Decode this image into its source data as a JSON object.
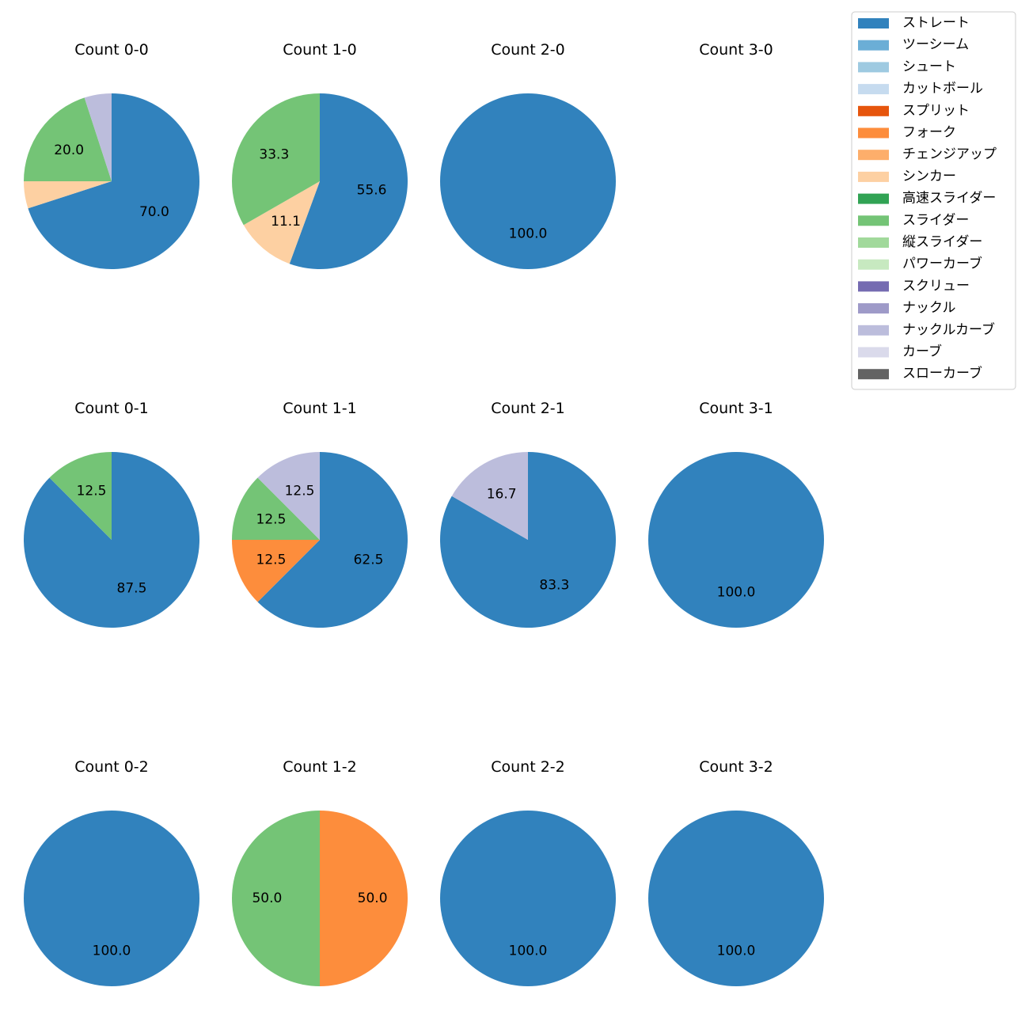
{
  "chart_data": {
    "type": "pie",
    "start_angle_deg": 90,
    "direction": "clockwise",
    "value_format": "percent, one decimal",
    "categories": [
      "ストレート",
      "ツーシーム",
      "シュート",
      "カットボール",
      "スプリット",
      "フォーク",
      "チェンジアップ",
      "シンカー",
      "高速スライダー",
      "スライダー",
      "縦スライダー",
      "パワーカーブ",
      "スクリュー",
      "ナックル",
      "ナックルカーブ",
      "カーブ",
      "スローカーブ"
    ],
    "colors": [
      "#3182bd",
      "#6baed6",
      "#9ecae1",
      "#c6dbef",
      "#e6550d",
      "#fd8d3c",
      "#fdae6b",
      "#fdd0a2",
      "#31a354",
      "#74c476",
      "#a1d99b",
      "#c7e9c0",
      "#756bb1",
      "#9e9ac8",
      "#bcbddc",
      "#dadaeb",
      "#636363"
    ],
    "legend": {
      "placement": "top-right",
      "labels": [
        "ストレート",
        "ツーシーム",
        "シュート",
        "カットボール",
        "スプリット",
        "フォーク",
        "チェンジアップ",
        "シンカー",
        "高速スライダー",
        "スライダー",
        "縦スライダー",
        "パワーカーブ",
        "スクリュー",
        "ナックル",
        "ナックルカーブ",
        "カーブ",
        "スローカーブ"
      ]
    },
    "panels": [
      {
        "title": "Count 0-0",
        "slices": [
          {
            "category": "ストレート",
            "value": 70.0,
            "label": "70.0"
          },
          {
            "category": "シンカー",
            "value": 5.0
          },
          {
            "category": "スライダー",
            "value": 20.0,
            "label": "20.0"
          },
          {
            "category": "ナックルカーブ",
            "value": 5.0
          }
        ]
      },
      {
        "title": "Count 1-0",
        "slices": [
          {
            "category": "ストレート",
            "value": 55.6,
            "label": "55.6"
          },
          {
            "category": "シンカー",
            "value": 11.1,
            "label": "11.1"
          },
          {
            "category": "スライダー",
            "value": 33.3,
            "label": "33.3"
          }
        ]
      },
      {
        "title": "Count 2-0",
        "slices": [
          {
            "category": "ストレート",
            "value": 100.0,
            "label": "100.0"
          }
        ]
      },
      {
        "title": "Count 3-0",
        "slices": []
      },
      {
        "title": "Count 0-1",
        "slices": [
          {
            "category": "ストレート",
            "value": 87.5,
            "label": "87.5"
          },
          {
            "category": "スライダー",
            "value": 12.5,
            "label": "12.5"
          }
        ]
      },
      {
        "title": "Count 1-1",
        "slices": [
          {
            "category": "ストレート",
            "value": 62.5,
            "label": "62.5"
          },
          {
            "category": "フォーク",
            "value": 12.5,
            "label": "12.5"
          },
          {
            "category": "スライダー",
            "value": 12.5,
            "label": "12.5"
          },
          {
            "category": "ナックルカーブ",
            "value": 12.5,
            "label": "12.5"
          }
        ]
      },
      {
        "title": "Count 2-1",
        "slices": [
          {
            "category": "ストレート",
            "value": 83.3,
            "label": "83.3"
          },
          {
            "category": "ナックルカーブ",
            "value": 16.7,
            "label": "16.7"
          }
        ]
      },
      {
        "title": "Count 3-1",
        "slices": [
          {
            "category": "ストレート",
            "value": 100.0,
            "label": "100.0"
          }
        ]
      },
      {
        "title": "Count 0-2",
        "slices": [
          {
            "category": "ストレート",
            "value": 100.0,
            "label": "100.0"
          }
        ]
      },
      {
        "title": "Count 1-2",
        "slices": [
          {
            "category": "フォーク",
            "value": 50.0,
            "label": "50.0"
          },
          {
            "category": "スライダー",
            "value": 50.0,
            "label": "50.0"
          }
        ]
      },
      {
        "title": "Count 2-2",
        "slices": [
          {
            "category": "ストレート",
            "value": 100.0,
            "label": "100.0"
          }
        ]
      },
      {
        "title": "Count 3-2",
        "slices": [
          {
            "category": "ストレート",
            "value": 100.0,
            "label": "100.0"
          }
        ]
      }
    ]
  }
}
